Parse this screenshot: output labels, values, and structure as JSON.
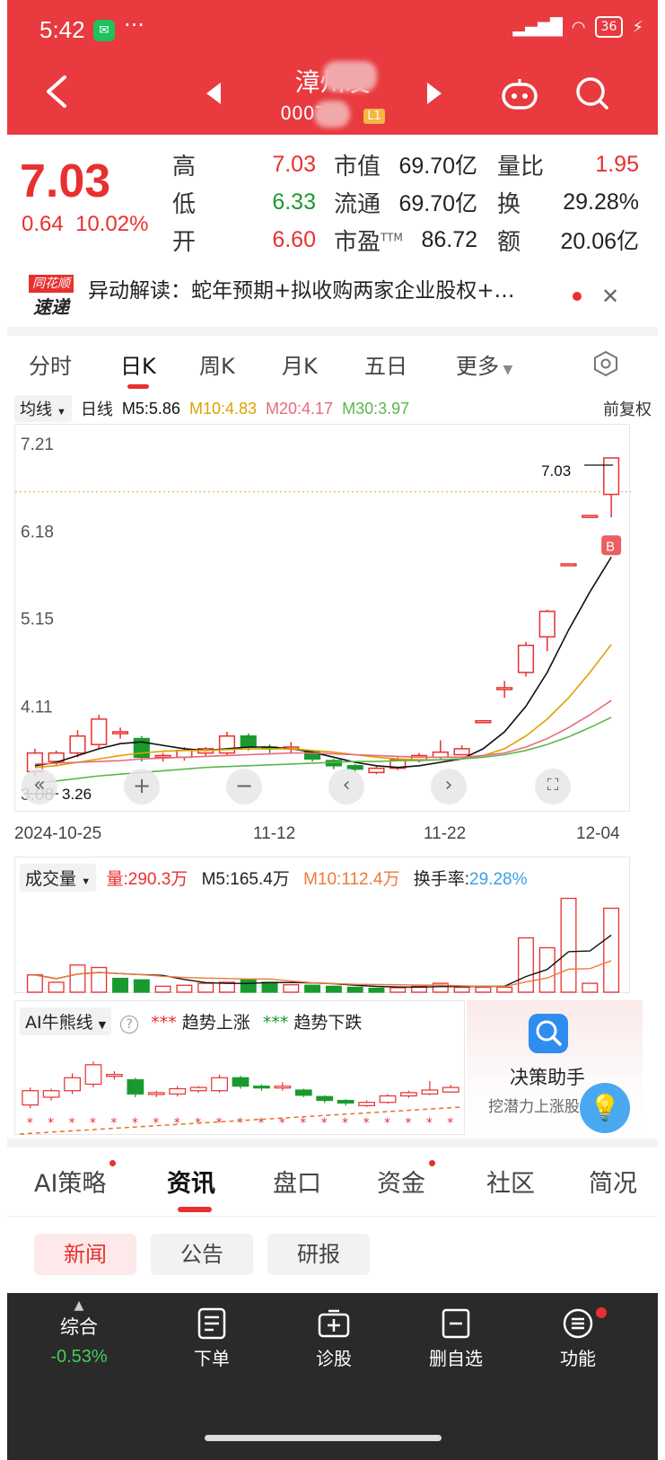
{
  "status_bar": {
    "time": "5:42",
    "battery": "36"
  },
  "header": {
    "title": "漳州发",
    "code": "0007",
    "level_badge": "L1"
  },
  "quote": {
    "price": "7.03",
    "change": "0.64",
    "change_pct": "10.02%",
    "stats": [
      {
        "label": "高",
        "value": "7.03",
        "color": "#e8302f"
      },
      {
        "label": "低",
        "value": "6.33",
        "color": "#1a9a2e"
      },
      {
        "label": "开",
        "value": "6.60",
        "color": "#e8302f"
      }
    ],
    "stats2": [
      {
        "label": "市值",
        "value": "69.70亿"
      },
      {
        "label": "流通",
        "value": "69.70亿"
      },
      {
        "label": "市盈",
        "sup": "TTM",
        "value": "86.72"
      }
    ],
    "stats3": [
      {
        "label": "量比",
        "value": "1.95",
        "color": "#e8302f"
      },
      {
        "label": "换",
        "value": "29.28%",
        "color": "#222"
      },
      {
        "label": "额",
        "value": "20.06亿",
        "color": "#222"
      }
    ]
  },
  "news_ticker": {
    "logo_top": "同花顺",
    "logo_bottom": "速递",
    "text": "异动解读：蛇年预期+拟收购两家企业股权+…"
  },
  "kline_tabs": [
    "分时",
    "日K",
    "周K",
    "月K",
    "五日",
    "更多"
  ],
  "kline_active": "日K",
  "ma_bar": {
    "selector": "均线",
    "period": "日线",
    "m5": "M5:5.86",
    "m10": "M10:4.83",
    "m20": "M20:4.17",
    "m30": "M30:3.97",
    "adjust": "前复权"
  },
  "colors": {
    "up": "#e8302f",
    "down": "#1a9a2e",
    "m5": "#111111",
    "m10": "#e0a000",
    "m20": "#e86a7a",
    "m30": "#5ab84a"
  },
  "chart_data": {
    "type": "candlestick",
    "y_ticks": [
      "7.21",
      "6.18",
      "5.15",
      "4.11",
      "3.08"
    ],
    "ylim": [
      3.08,
      7.21
    ],
    "high_label": "7.03",
    "low_label": "3.26",
    "x_labels": [
      "2024-10-25",
      "11-12",
      "11-22",
      "12-04"
    ],
    "candles": [
      {
        "o": 3.33,
        "c": 3.55,
        "h": 3.6,
        "l": 3.28
      },
      {
        "o": 3.45,
        "c": 3.55,
        "h": 3.58,
        "l": 3.4
      },
      {
        "o": 3.55,
        "c": 3.75,
        "h": 3.82,
        "l": 3.5
      },
      {
        "o": 3.65,
        "c": 3.95,
        "h": 4.0,
        "l": 3.6
      },
      {
        "o": 3.8,
        "c": 3.8,
        "h": 3.85,
        "l": 3.72
      },
      {
        "o": 3.72,
        "c": 3.5,
        "h": 3.75,
        "l": 3.45
      },
      {
        "o": 3.5,
        "c": 3.52,
        "h": 3.55,
        "l": 3.45
      },
      {
        "o": 3.5,
        "c": 3.58,
        "h": 3.62,
        "l": 3.46
      },
      {
        "o": 3.55,
        "c": 3.6,
        "h": 3.62,
        "l": 3.52
      },
      {
        "o": 3.55,
        "c": 3.75,
        "h": 3.8,
        "l": 3.52
      },
      {
        "o": 3.75,
        "c": 3.62,
        "h": 3.78,
        "l": 3.58
      },
      {
        "o": 3.62,
        "c": 3.6,
        "h": 3.65,
        "l": 3.55
      },
      {
        "o": 3.6,
        "c": 3.62,
        "h": 3.68,
        "l": 3.55
      },
      {
        "o": 3.56,
        "c": 3.48,
        "h": 3.58,
        "l": 3.45
      },
      {
        "o": 3.46,
        "c": 3.4,
        "h": 3.48,
        "l": 3.36
      },
      {
        "o": 3.4,
        "c": 3.36,
        "h": 3.42,
        "l": 3.32
      },
      {
        "o": 3.32,
        "c": 3.37,
        "h": 3.4,
        "l": 3.3
      },
      {
        "o": 3.37,
        "c": 3.47,
        "h": 3.5,
        "l": 3.35
      },
      {
        "o": 3.47,
        "c": 3.52,
        "h": 3.55,
        "l": 3.44
      },
      {
        "o": 3.5,
        "c": 3.56,
        "h": 3.7,
        "l": 3.48
      },
      {
        "o": 3.53,
        "c": 3.6,
        "h": 3.64,
        "l": 3.52
      },
      {
        "o": 3.93,
        "c": 3.93,
        "h": 3.93,
        "l": 3.93
      },
      {
        "o": 4.32,
        "c": 4.32,
        "h": 4.4,
        "l": 4.2
      },
      {
        "o": 4.5,
        "c": 4.82,
        "h": 4.86,
        "l": 4.45
      },
      {
        "o": 4.92,
        "c": 5.22,
        "h": 5.24,
        "l": 4.75
      },
      {
        "o": 5.78,
        "c": 5.78,
        "h": 5.78,
        "l": 5.78
      },
      {
        "o": 6.35,
        "c": 6.35,
        "h": 6.35,
        "l": 6.35
      },
      {
        "o": 6.6,
        "c": 7.03,
        "h": 7.03,
        "l": 6.33
      }
    ],
    "ma": {
      "M5": [
        3.4,
        3.44,
        3.52,
        3.6,
        3.66,
        3.68,
        3.64,
        3.6,
        3.58,
        3.6,
        3.62,
        3.62,
        3.6,
        3.56,
        3.5,
        3.44,
        3.4,
        3.38,
        3.4,
        3.44,
        3.48,
        3.6,
        3.8,
        4.1,
        4.5,
        5.0,
        5.45,
        5.86
      ],
      "M10": [
        3.38,
        3.4,
        3.44,
        3.48,
        3.52,
        3.55,
        3.57,
        3.58,
        3.58,
        3.59,
        3.6,
        3.6,
        3.6,
        3.58,
        3.56,
        3.53,
        3.5,
        3.48,
        3.47,
        3.47,
        3.48,
        3.52,
        3.6,
        3.75,
        3.95,
        4.2,
        4.5,
        4.83
      ],
      "M20": [
        3.42,
        3.43,
        3.44,
        3.45,
        3.46,
        3.48,
        3.49,
        3.5,
        3.51,
        3.52,
        3.53,
        3.54,
        3.55,
        3.55,
        3.54,
        3.53,
        3.52,
        3.51,
        3.5,
        3.5,
        3.5,
        3.52,
        3.55,
        3.62,
        3.72,
        3.85,
        4.0,
        4.17
      ],
      "M30": [
        3.2,
        3.22,
        3.25,
        3.28,
        3.3,
        3.32,
        3.34,
        3.36,
        3.38,
        3.39,
        3.4,
        3.41,
        3.42,
        3.43,
        3.44,
        3.45,
        3.45,
        3.46,
        3.46,
        3.47,
        3.48,
        3.5,
        3.53,
        3.58,
        3.65,
        3.74,
        3.85,
        3.97
      ]
    }
  },
  "volume": {
    "selector": "成交量",
    "vol": "量:290.3万",
    "m5": "M5:165.4万",
    "m10": "M10:112.4万",
    "turnover_label": "换手率:",
    "turnover": "29.28%",
    "bars": [
      35,
      20,
      55,
      50,
      28,
      25,
      12,
      14,
      18,
      20,
      25,
      20,
      15,
      14,
      12,
      10,
      8,
      9,
      12,
      18,
      10,
      10,
      10,
      110,
      90,
      190,
      18,
      170
    ],
    "bar_up": [
      1,
      1,
      1,
      1,
      0,
      0,
      1,
      1,
      1,
      1,
      0,
      0,
      1,
      0,
      0,
      0,
      0,
      1,
      1,
      1,
      1,
      1,
      1,
      1,
      1,
      1,
      1,
      1
    ]
  },
  "ai_panel": {
    "selector": "AI牛熊线",
    "up_label": "趋势上涨",
    "down_label": "趋势下跌"
  },
  "decision": {
    "title": "决策助手",
    "subtitle": "挖潜力上涨股"
  },
  "bottom_tabs": [
    "AI策略",
    "资讯",
    "盘口",
    "资金",
    "社区",
    "简况"
  ],
  "bottom_tab_active": "资讯",
  "sub_tabs": [
    "新闻",
    "公告",
    "研报"
  ],
  "sub_tab_active": "新闻",
  "bottom_bar": {
    "index_label": "综合",
    "index_value": "-0.53%",
    "items": [
      "下单",
      "诊股",
      "删自选",
      "功能"
    ]
  }
}
